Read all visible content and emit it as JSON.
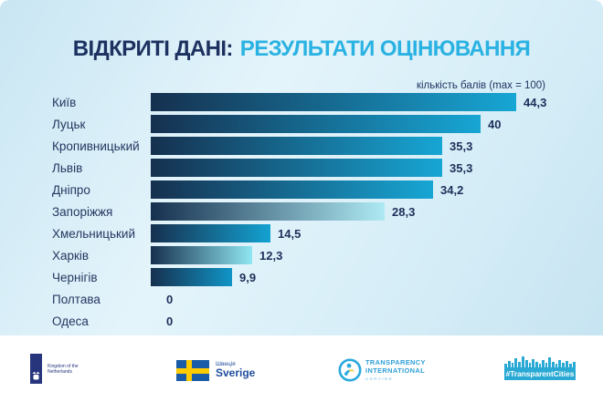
{
  "slide": {
    "title_part1": "ВІДКРИТІ ДАНІ:",
    "title_part2": "РЕЗУЛЬТАТИ ОЦІНЮВАННЯ",
    "subtitle": "кількість балів (max = 100)"
  },
  "chart_data": {
    "type": "bar",
    "orientation": "horizontal",
    "title": "ВІДКРИТІ ДАНІ: РЕЗУЛЬТАТИ ОЦІНЮВАННЯ",
    "subtitle": "кількість балів (max = 100)",
    "xlim": [
      0,
      100
    ],
    "max_score": 100,
    "grid": false,
    "legend": false,
    "categories": [
      "Київ",
      "Луцьк",
      "Кропивницький",
      "Львів",
      "Дніпро",
      "Запоріжжя",
      "Хмельницький",
      "Харків",
      "Чернігів",
      "Полтава",
      "Одеса"
    ],
    "values": [
      44.3,
      40,
      35.3,
      35.3,
      34.2,
      28.3,
      14.5,
      12.3,
      9.9,
      0,
      0
    ],
    "value_labels": [
      "44,3",
      "40",
      "35,3",
      "35,3",
      "34,2",
      "28,3",
      "14,5",
      "12,3",
      "9,9",
      "0",
      "0"
    ],
    "bar_gradient_start": "#16304f",
    "bar_gradient_ends": [
      "#17a6d4",
      "#17a6d4",
      "#17a6d4",
      "#17a6d4",
      "#17a6d4",
      "#aeeaf3",
      "#14a2d1",
      "#90e7f1",
      "#1095c6",
      "#17a6d4",
      "#17a6d4"
    ]
  },
  "colors": {
    "background_deep": "#c9e6f3",
    "background_light": "#e4f4fb",
    "title_primary": "#1d3160",
    "title_accent": "#2ab2e2",
    "label_navy": "#243760",
    "footer_background": "#ffffff",
    "netherlands_navy": "#26357c",
    "sweden_blue": "#1a5ca8",
    "sweden_yellow": "#fecb00",
    "ti_blue": "#2d9fd6",
    "ti_light_blue": "#7fc4e8",
    "hashtag_blue": "#29a9d4"
  },
  "footer": {
    "netherlands_label": "Kingdom of the Netherlands",
    "sweden_label_uk": "Швеція",
    "sweden_label_sv": "Sverige",
    "ti_line1": "TRANSPARENCY",
    "ti_line2": "INTERNATIONAL",
    "ti_line3": "UKRAINE",
    "hashtag_label": "#TransparentCities"
  }
}
